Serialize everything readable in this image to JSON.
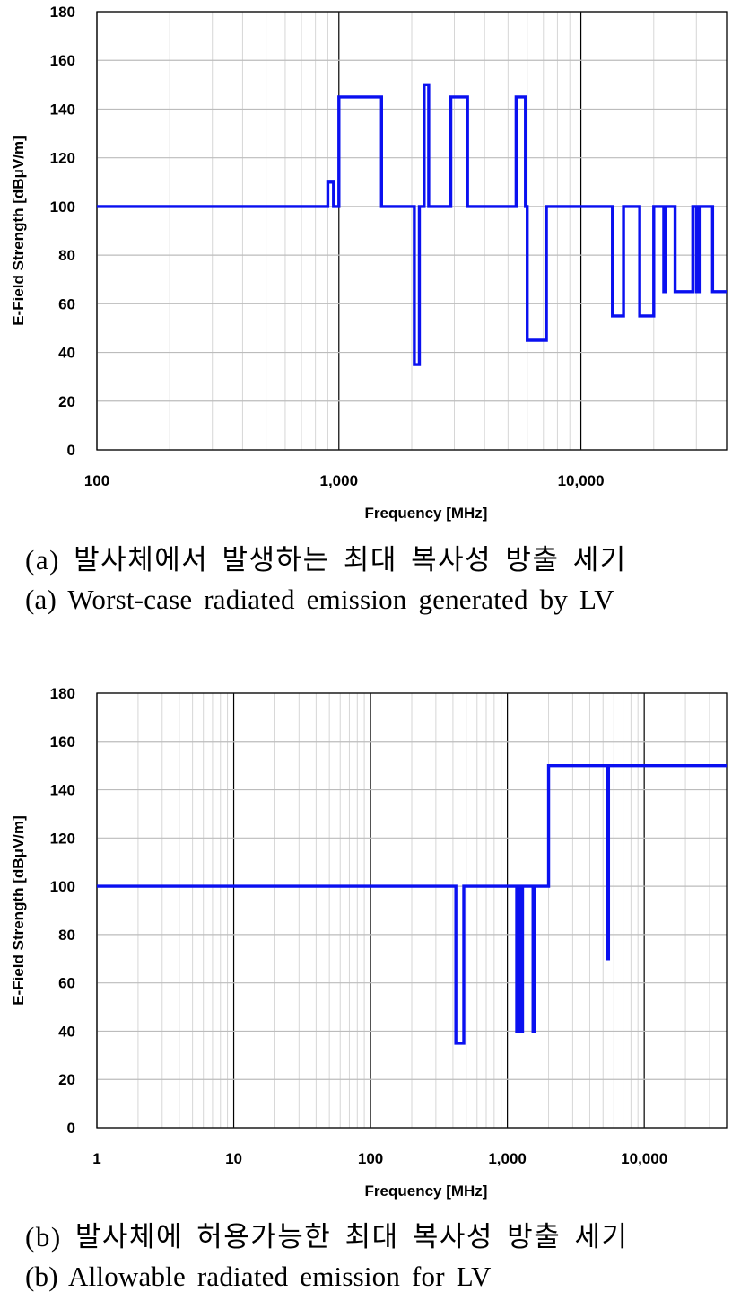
{
  "chart_data": [
    {
      "type": "line",
      "xscale": "log",
      "xlim": [
        100,
        40000
      ],
      "ylim": [
        0,
        180
      ],
      "xlabel": "Frequency [MHz]",
      "ylabel": "E-Field Strength [dBμV/m]",
      "xtick_labels": [
        {
          "x": 100,
          "label": "100"
        },
        {
          "x": 1000,
          "label": "1,000"
        },
        {
          "x": 10000,
          "label": "10,000"
        }
      ],
      "yticks": [
        0,
        20,
        40,
        60,
        80,
        100,
        120,
        140,
        160,
        180
      ],
      "grid": true,
      "series_color": "#0a10f0",
      "steps": [
        [
          100,
          100
        ],
        [
          900,
          100
        ],
        [
          900,
          110
        ],
        [
          950,
          110
        ],
        [
          950,
          100
        ],
        [
          1000,
          100
        ],
        [
          1000,
          145
        ],
        [
          1500,
          145
        ],
        [
          1500,
          100
        ],
        [
          2050,
          100
        ],
        [
          2050,
          35
        ],
        [
          2150,
          35
        ],
        [
          2150,
          100
        ],
        [
          2250,
          100
        ],
        [
          2250,
          150
        ],
        [
          2350,
          150
        ],
        [
          2350,
          100
        ],
        [
          2900,
          100
        ],
        [
          2900,
          145
        ],
        [
          3400,
          145
        ],
        [
          3400,
          100
        ],
        [
          5400,
          100
        ],
        [
          5400,
          145
        ],
        [
          5900,
          145
        ],
        [
          5900,
          100
        ],
        [
          6000,
          100
        ],
        [
          6000,
          45
        ],
        [
          7200,
          45
        ],
        [
          7200,
          100
        ],
        [
          13500,
          100
        ],
        [
          13500,
          55
        ],
        [
          15000,
          55
        ],
        [
          15000,
          100
        ],
        [
          17500,
          100
        ],
        [
          17500,
          55
        ],
        [
          20000,
          55
        ],
        [
          20000,
          100
        ],
        [
          22000,
          100
        ],
        [
          22000,
          65
        ],
        [
          22400,
          65
        ],
        [
          22400,
          100
        ],
        [
          24500,
          100
        ],
        [
          24500,
          65
        ],
        [
          29000,
          65
        ],
        [
          29000,
          100
        ],
        [
          30000,
          100
        ],
        [
          30000,
          65
        ],
        [
          30800,
          65
        ],
        [
          30800,
          100
        ],
        [
          35000,
          100
        ],
        [
          35000,
          65
        ],
        [
          40000,
          65
        ]
      ]
    },
    {
      "type": "line",
      "xscale": "log",
      "xlim": [
        1,
        40000
      ],
      "ylim": [
        0,
        180
      ],
      "xlabel": "Frequency [MHz]",
      "ylabel": "E-Field Strength [dBμV/m]",
      "xtick_labels": [
        {
          "x": 1,
          "label": "1"
        },
        {
          "x": 10,
          "label": "10"
        },
        {
          "x": 100,
          "label": "100"
        },
        {
          "x": 1000,
          "label": "1,000"
        },
        {
          "x": 10000,
          "label": "10,000"
        }
      ],
      "yticks": [
        0,
        20,
        40,
        60,
        80,
        100,
        120,
        140,
        160,
        180
      ],
      "grid": true,
      "series_color": "#0a10f0",
      "steps": [
        [
          1,
          100
        ],
        [
          420,
          100
        ],
        [
          420,
          35
        ],
        [
          480,
          35
        ],
        [
          480,
          100
        ],
        [
          1170,
          100
        ],
        [
          1170,
          40
        ],
        [
          1190,
          40
        ],
        [
          1190,
          100
        ],
        [
          1210,
          100
        ],
        [
          1210,
          40
        ],
        [
          1240,
          40
        ],
        [
          1240,
          100
        ],
        [
          1260,
          100
        ],
        [
          1260,
          40
        ],
        [
          1290,
          40
        ],
        [
          1290,
          100
        ],
        [
          1540,
          100
        ],
        [
          1540,
          40
        ],
        [
          1580,
          40
        ],
        [
          1580,
          100
        ],
        [
          2000,
          100
        ],
        [
          2000,
          150
        ],
        [
          5400,
          150
        ],
        [
          5400,
          70
        ],
        [
          5480,
          70
        ],
        [
          5480,
          150
        ],
        [
          40000,
          150
        ]
      ]
    }
  ],
  "captions": {
    "a_ko": "(a) 발사체에서 발생하는 최대 복사성 방출 세기",
    "a_en": "(a) Worst-case radiated emission generated by LV",
    "b_ko": "(b) 발사체에 허용가능한 최대 복사성 방출 세기",
    "b_en": "(b) Allowable radiated emission for LV"
  }
}
